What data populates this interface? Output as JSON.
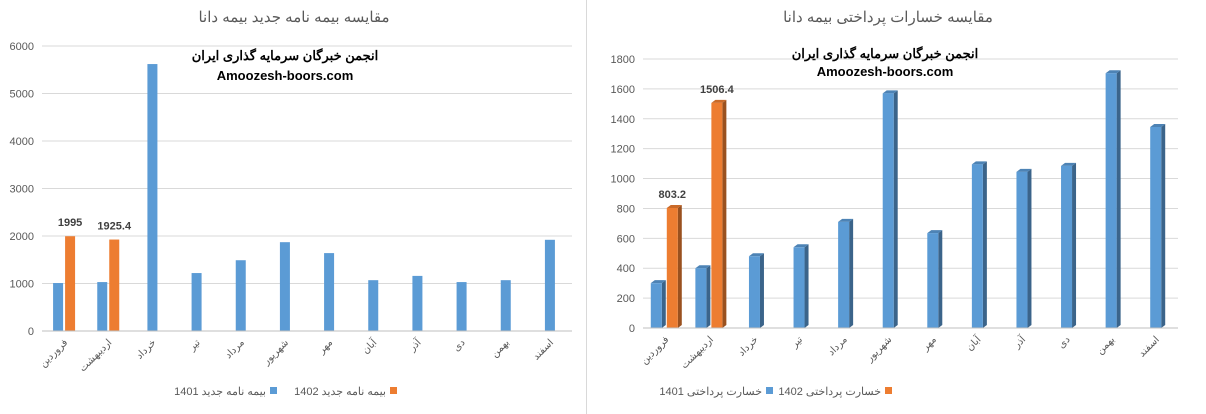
{
  "chart_data": [
    {
      "type": "bar",
      "title": "مقایسه بیمه نامه جدید بیمه دانا",
      "watermark": [
        "انجمن خبرگان سرمایه گذاری ایران",
        "Amoozesh-boors.com"
      ],
      "categories": [
        "فروردین",
        "اردیبهشت",
        "خرداد",
        "تیر",
        "مرداد",
        "شهریور",
        "مهر",
        "آبان",
        "آذر",
        "دی",
        "بهمن",
        "اسفند"
      ],
      "series": [
        {
          "name": "بیمه نامه جدید 1401",
          "color": "#5b9bd5",
          "values": [
            1010,
            1030,
            5620,
            1220,
            1490,
            1870,
            1640,
            1070,
            1160,
            1030,
            1070,
            1920
          ]
        },
        {
          "name": "بیمه نامه جدید 1402",
          "color": "#ed7d31",
          "values": [
            1995,
            1925.4,
            null,
            null,
            null,
            null,
            null,
            null,
            null,
            null,
            null,
            null
          ],
          "labels": [
            "1995",
            "1925.4"
          ]
        }
      ],
      "ylim": [
        0,
        6000
      ],
      "yticks": [
        "0",
        "1000",
        "2000",
        "3000",
        "4000",
        "5000",
        "6000"
      ],
      "grid": true,
      "legend": "bottom"
    },
    {
      "type": "bar",
      "title": "مقایسه خسارات پرداختی بیمه دانا",
      "watermark": [
        "انجمن خبرگان سرمایه گذاری ایران",
        "Amoozesh-boors.com"
      ],
      "categories": [
        "فروردین",
        "اردیبهشت",
        "خرداد",
        "تیر",
        "مرداد",
        "شهریور",
        "مهر",
        "آبان",
        "آذر",
        "دی",
        "بهمن",
        "اسفند"
      ],
      "series": [
        {
          "name": "خسارت پرداختی 1401",
          "color": "#5b9bd5",
          "values": [
            300,
            400,
            480,
            540,
            710,
            1570,
            635,
            1095,
            1045,
            1085,
            1705,
            1345
          ]
        },
        {
          "name": "خسارت پرداختی 1402",
          "color": "#ed7d31",
          "values": [
            803.2,
            1506.4,
            null,
            null,
            null,
            null,
            null,
            null,
            null,
            null,
            null,
            null
          ],
          "labels": [
            "803.2",
            "1506.4"
          ]
        }
      ],
      "ylim": [
        0,
        1800
      ],
      "yticks": [
        "0",
        "200",
        "400",
        "600",
        "800",
        "1000",
        "1200",
        "1400",
        "1600",
        "1800"
      ],
      "grid": true,
      "legend": "bottom"
    }
  ]
}
